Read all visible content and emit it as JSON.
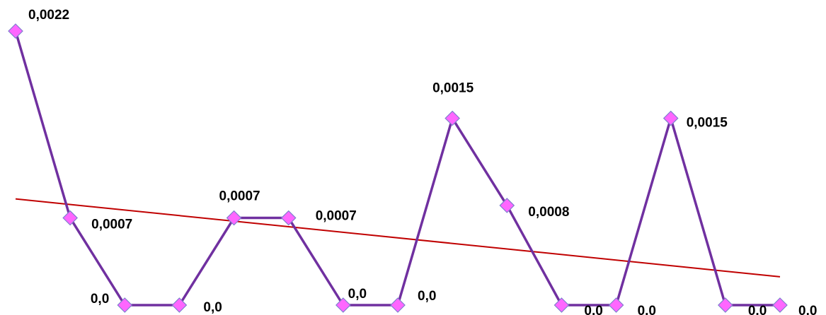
{
  "chart_data": {
    "type": "line",
    "title": "",
    "xlabel": "",
    "ylabel": "",
    "x": [
      1,
      2,
      3,
      4,
      5,
      6,
      7,
      8,
      9,
      10,
      11,
      12,
      13,
      14,
      15
    ],
    "series": [
      {
        "values": [
          0.0022,
          0.0007,
          0.0,
          0.0,
          0.0007,
          0.0007,
          0.0,
          0.0,
          0.0015,
          0.0008,
          0.0,
          0.0,
          0.0015,
          0.0,
          0.0
        ],
        "labels": [
          "0,0022",
          "0,0007",
          "0,0",
          "0,0",
          "0,0007",
          "0,0007",
          "0,0",
          "0,0",
          "0,0015",
          "0,0008",
          "0,0",
          "0,0",
          "0,0015",
          "0,0",
          "0,0"
        ],
        "line_color": "#7030A0",
        "marker": "diamond",
        "marker_color": "#FF66FF",
        "marker_edge_color": "#7F7FCF"
      }
    ],
    "trendline": {
      "type": "linear",
      "color": "#C00000"
    },
    "ylim": [
      0,
      0.0022
    ],
    "axes_visible": false,
    "grid": false,
    "legend": "none"
  }
}
